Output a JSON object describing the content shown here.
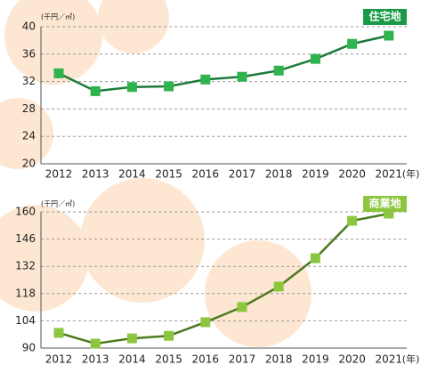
{
  "chart_data": [
    {
      "type": "line",
      "title": "住宅地",
      "y_unit": "(千円／㎡)",
      "x_unit": "(年)",
      "categories": [
        "2012",
        "2013",
        "2014",
        "2015",
        "2016",
        "2017",
        "2018",
        "2019",
        "2020",
        "2021"
      ],
      "series": [
        {
          "color": "#1f7a3a",
          "marker_color": "#2fb34c",
          "values": [
            33.2,
            30.6,
            31.2,
            31.3,
            32.3,
            32.7,
            33.6,
            35.3,
            37.5,
            38.7
          ]
        }
      ],
      "ylim": [
        20,
        40
      ],
      "yticks": [
        20,
        24,
        28,
        32,
        36,
        40
      ],
      "grid": true,
      "title_color": "#1a9a47"
    },
    {
      "type": "line",
      "title": "商業地",
      "y_unit": "(千円／㎡)",
      "x_unit": "(年)",
      "categories": [
        "2012",
        "2013",
        "2014",
        "2015",
        "2016",
        "2017",
        "2018",
        "2019",
        "2020",
        "2021"
      ],
      "series": [
        {
          "color": "#4d7a1e",
          "marker_color": "#8cc63f",
          "values": [
            97.8,
            92.3,
            95.0,
            96.3,
            103.3,
            111.1,
            121.6,
            136.2,
            155.4,
            159.1
          ]
        }
      ],
      "ylim": [
        90,
        160
      ],
      "yticks": [
        90,
        104,
        118,
        132,
        146,
        160
      ],
      "grid": true,
      "title_color": "#8cc63f"
    }
  ]
}
